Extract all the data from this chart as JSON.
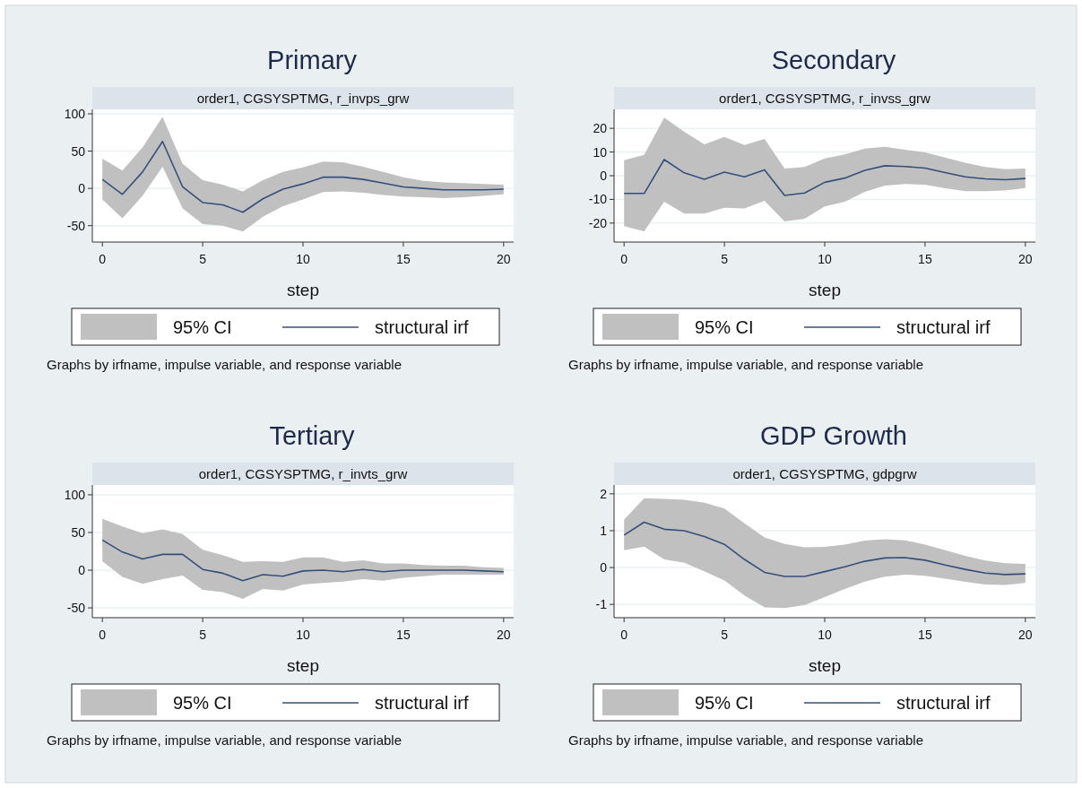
{
  "chart_data": [
    {
      "type": "line",
      "title": "Primary",
      "subtitle": "order1, CGSYSPTMG, r_invps_grw",
      "xlabel": "step",
      "annotations": [
        "95% CI",
        "Graphs by irfname, impulse variable, and response variable"
      ],
      "x": [
        0,
        1,
        2,
        3,
        4,
        5,
        6,
        7,
        8,
        9,
        10,
        11,
        12,
        13,
        14,
        15,
        16,
        17,
        18,
        19,
        20
      ],
      "xlim": [
        -0.5,
        20.5
      ],
      "xticks": [
        0,
        5,
        10,
        15,
        20
      ],
      "ylim": [
        -72,
        106
      ],
      "yticks": [
        -50,
        0,
        50,
        100
      ],
      "grid": "y",
      "legend": "bottom",
      "series": [
        {
          "name": "structural irf",
          "color": "#34507a",
          "values": [
            12,
            -8,
            22,
            63,
            2,
            -19,
            -22,
            -32,
            -14,
            -1,
            6,
            15,
            15,
            12,
            7,
            2,
            0,
            -2,
            -2,
            -2,
            -1
          ],
          "lower": [
            -15,
            -40,
            -10,
            29,
            -27,
            -48,
            -50,
            -58,
            -38,
            -24,
            -15,
            -5,
            -4,
            -6,
            -9,
            -11,
            -12,
            -13,
            -12,
            -10,
            -8
          ],
          "upper": [
            40,
            24,
            55,
            96,
            33,
            11,
            5,
            -4,
            11,
            22,
            28,
            36,
            35,
            29,
            22,
            15,
            10,
            8,
            7,
            6,
            5
          ]
        }
      ]
    },
    {
      "type": "line",
      "title": "Secondary",
      "subtitle": "order1, CGSYSPTMG, r_invss_grw",
      "xlabel": "step",
      "annotations": [
        "95% CI",
        "Graphs by irfname, impulse variable, and response variable"
      ],
      "x": [
        0,
        1,
        2,
        3,
        4,
        5,
        6,
        7,
        8,
        9,
        10,
        11,
        12,
        13,
        14,
        15,
        16,
        17,
        18,
        19,
        20
      ],
      "xlim": [
        -0.5,
        20.5
      ],
      "xticks": [
        0,
        5,
        10,
        15,
        20
      ],
      "ylim": [
        -28,
        28
      ],
      "yticks": [
        -20,
        -10,
        0,
        10,
        20
      ],
      "grid": "y",
      "legend": "bottom",
      "series": [
        {
          "name": "structural irf",
          "color": "#34507a",
          "values": [
            -7.5,
            -7.5,
            6.8,
            1.2,
            -1.5,
            1.5,
            -0.5,
            2.5,
            -8.3,
            -7.3,
            -2.8,
            -1,
            2.3,
            4.2,
            3.9,
            3.2,
            1.3,
            -0.5,
            -1.3,
            -1.7,
            -1.2
          ],
          "lower": [
            -21.3,
            -23.5,
            -11,
            -16,
            -16,
            -13.5,
            -13.8,
            -10.6,
            -19.3,
            -18.2,
            -13,
            -11,
            -6.8,
            -4.2,
            -3.5,
            -3.8,
            -5.3,
            -6.5,
            -6.5,
            -6.2,
            -5.2
          ],
          "upper": [
            6.5,
            8.8,
            24.5,
            18.5,
            13.2,
            16.4,
            13,
            15.5,
            3,
            3.7,
            7.3,
            9,
            11.4,
            12.2,
            11,
            9.8,
            7.7,
            5.5,
            3.7,
            2.7,
            3
          ]
        }
      ]
    },
    {
      "type": "line",
      "title": "Tertiary",
      "subtitle": "order1, CGSYSPTMG, r_invts_grw",
      "xlabel": "step",
      "annotations": [
        "95% CI",
        "Graphs by irfname, impulse variable, and response variable"
      ],
      "x": [
        0,
        1,
        2,
        3,
        4,
        5,
        6,
        7,
        8,
        9,
        10,
        11,
        12,
        13,
        14,
        15,
        16,
        17,
        18,
        19,
        20
      ],
      "xlim": [
        -0.5,
        20.5
      ],
      "xticks": [
        0,
        5,
        10,
        15,
        20
      ],
      "ylim": [
        -63,
        113
      ],
      "yticks": [
        -50,
        0,
        50,
        100
      ],
      "grid": "y",
      "legend": "bottom",
      "series": [
        {
          "name": "structural irf",
          "color": "#34507a",
          "values": [
            40,
            24,
            15,
            21,
            21,
            1,
            -4,
            -14,
            -6,
            -8,
            -1,
            0,
            -2,
            1,
            -2,
            0,
            0,
            0,
            0,
            -1,
            -2
          ],
          "lower": [
            12,
            -9,
            -18,
            -12,
            -7,
            -26,
            -29,
            -38,
            -25,
            -27,
            -19,
            -17,
            -15,
            -12,
            -14,
            -10,
            -8,
            -6,
            -6,
            -6,
            -6
          ],
          "upper": [
            68,
            58,
            49,
            54,
            48,
            27,
            20,
            11,
            12,
            11,
            17,
            17,
            11,
            13,
            9,
            9,
            7,
            6,
            6,
            4,
            3
          ]
        }
      ]
    },
    {
      "type": "line",
      "title": "GDP Growth",
      "subtitle": "order1, CGSYSPTMG, gdpgrw",
      "xlabel": "step",
      "annotations": [
        "95% CI",
        "Graphs by irfname, impulse variable, and response variable"
      ],
      "x": [
        0,
        1,
        2,
        3,
        4,
        5,
        6,
        7,
        8,
        9,
        10,
        11,
        12,
        13,
        14,
        15,
        16,
        17,
        18,
        19,
        20
      ],
      "xlim": [
        -0.5,
        20.5
      ],
      "xticks": [
        0,
        5,
        10,
        15,
        20
      ],
      "ylim": [
        -1.36,
        2.24
      ],
      "yticks": [
        -1,
        0,
        1,
        2
      ],
      "grid": "y",
      "legend": "bottom",
      "series": [
        {
          "name": "structural irf",
          "color": "#34507a",
          "values": [
            0.88,
            1.23,
            1.04,
            1.0,
            0.84,
            0.63,
            0.22,
            -0.13,
            -0.24,
            -0.24,
            -0.11,
            0.02,
            0.17,
            0.26,
            0.27,
            0.2,
            0.07,
            -0.05,
            -0.15,
            -0.19,
            -0.17
          ],
          "lower": [
            0.47,
            0.57,
            0.22,
            0.13,
            -0.1,
            -0.35,
            -0.76,
            -1.08,
            -1.1,
            -1.02,
            -0.8,
            -0.58,
            -0.38,
            -0.25,
            -0.19,
            -0.22,
            -0.3,
            -0.39,
            -0.46,
            -0.47,
            -0.42
          ],
          "upper": [
            1.3,
            1.88,
            1.86,
            1.84,
            1.76,
            1.6,
            1.2,
            0.82,
            0.64,
            0.55,
            0.56,
            0.62,
            0.73,
            0.77,
            0.74,
            0.62,
            0.47,
            0.32,
            0.19,
            0.12,
            0.1
          ]
        }
      ]
    }
  ]
}
